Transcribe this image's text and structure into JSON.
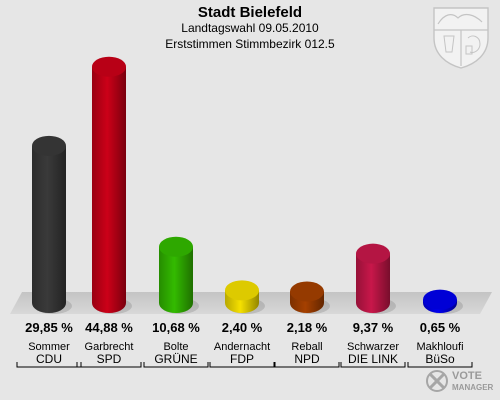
{
  "header": {
    "title": "Stadt Bielefeld",
    "subtitle": "Landtagswahl 09.05.2010",
    "subtitle2": "Erststimmen Stimmbezirk 012.5"
  },
  "logo": {
    "text_line1": "VOTE",
    "text_line2": "MANAGER"
  },
  "chart_data": {
    "type": "bar",
    "title": "Stadt Bielefeld",
    "subtitle": "Landtagswahl 09.05.2010 · Erststimmen Stimmbezirk 012.5",
    "categories": [
      "CDU",
      "SPD",
      "GRÜNE",
      "FDP",
      "NPD",
      "DIE LINKE",
      "BüSo"
    ],
    "candidates": [
      "Sommer",
      "Garbrecht",
      "Bolte",
      "Andernacht",
      "Reball",
      "Schwarzer",
      "Makhloufi"
    ],
    "values": [
      29.85,
      44.88,
      10.68,
      2.4,
      2.18,
      9.37,
      0.65
    ],
    "value_labels": [
      "29,85 %",
      "44,88 %",
      "10,68 %",
      "2,40 %",
      "2,18 %",
      "9,37 %",
      "0,65 %"
    ],
    "party_labels": [
      "CDU",
      "SPD",
      "GRÜNE",
      "FDP",
      "NPD",
      "DIE LINK",
      "BüSo"
    ],
    "colors": [
      "#3a3a3a",
      "#cc0018",
      "#33bb00",
      "#f5e000",
      "#a54000",
      "#c8174a",
      "#0000ee"
    ],
    "ylim": [
      0,
      45
    ],
    "grid": false,
    "legend": "none"
  }
}
